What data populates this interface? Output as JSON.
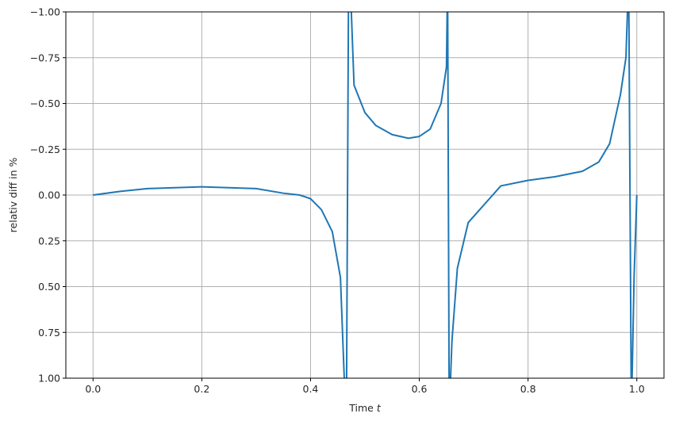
{
  "chart_data": {
    "type": "line",
    "title": "",
    "xlabel": "Time",
    "xlabel_var": "t",
    "ylabel": "relativ diff in %",
    "xlim": [
      -0.05,
      1.05
    ],
    "ylim": [
      1.0,
      -1.0
    ],
    "y_inverted": true,
    "grid": true,
    "xticks": [
      0.0,
      0.2,
      0.4,
      0.6,
      0.8,
      1.0
    ],
    "xtick_labels": [
      "0.0",
      "0.2",
      "0.4",
      "0.6",
      "0.8",
      "1.0"
    ],
    "yticks": [
      -1.0,
      -0.75,
      -0.5,
      -0.25,
      0.0,
      0.25,
      0.5,
      0.75,
      1.0
    ],
    "ytick_labels": [
      "−1.00",
      "−0.75",
      "−0.50",
      "−0.25",
      "0.00",
      "0.25",
      "0.50",
      "0.75",
      "1.00"
    ],
    "series": [
      {
        "color": "#1f77b4",
        "x": [
          0.0,
          0.05,
          0.1,
          0.15,
          0.2,
          0.25,
          0.3,
          0.35,
          0.38,
          0.4,
          0.42,
          0.44,
          0.455,
          0.462,
          0.466,
          0.47,
          0.475,
          0.48,
          0.5,
          0.52,
          0.55,
          0.58,
          0.6,
          0.62,
          0.64,
          0.65,
          0.652,
          0.655,
          0.66,
          0.67,
          0.69,
          0.72,
          0.75,
          0.8,
          0.85,
          0.9,
          0.93,
          0.95,
          0.97,
          0.98,
          0.985,
          0.99,
          0.995,
          1.0
        ],
        "y": [
          0.0,
          -0.02,
          -0.035,
          -0.04,
          -0.045,
          -0.04,
          -0.035,
          -0.01,
          0.0,
          0.02,
          0.08,
          0.2,
          0.45,
          1.0,
          1.2,
          -1.2,
          -1.0,
          -0.6,
          -0.45,
          -0.38,
          -0.33,
          -0.31,
          -0.32,
          -0.36,
          -0.5,
          -0.7,
          -1.2,
          1.2,
          0.8,
          0.4,
          0.15,
          0.05,
          -0.05,
          -0.08,
          -0.1,
          -0.13,
          -0.18,
          -0.28,
          -0.55,
          -0.75,
          -1.2,
          1.2,
          0.45,
          0.0
        ]
      }
    ]
  }
}
